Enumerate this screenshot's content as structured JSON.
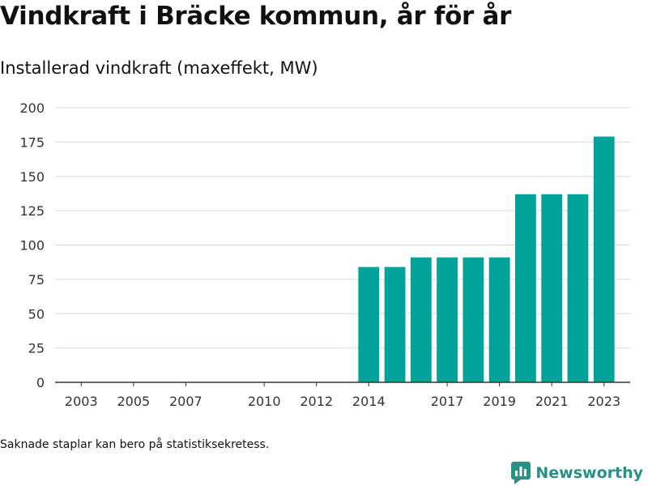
{
  "title": "Vindkraft i Bräcke kommun, år för år",
  "subtitle": "Installerad vindkraft (maxeffekt, MW)",
  "footnote": "Saknade staplar kan bero på statistiksekretess.",
  "brand": {
    "label": "Newsworthy",
    "icon": "newsworthy-logo-icon",
    "color": "#2a8f84"
  },
  "colors": {
    "bar": "#00a398",
    "grid": "#d9d9d9",
    "axis": "#333333"
  },
  "chart_data": {
    "type": "bar",
    "title": "Vindkraft i Bräcke kommun, år för år",
    "subtitle": "Installerad vindkraft (maxeffekt, MW)",
    "xlabel": "",
    "ylabel": "",
    "categories": [
      2014,
      2015,
      2016,
      2017,
      2018,
      2019,
      2020,
      2021,
      2022,
      2023
    ],
    "values": [
      84,
      84,
      91,
      91,
      91,
      91,
      137,
      137,
      137,
      179
    ],
    "x_range": [
      2002,
      2024
    ],
    "x_ticks": [
      "2003",
      "2005",
      "2007",
      "2010",
      "2012",
      "2014",
      "2017",
      "2019",
      "2021",
      "2023"
    ],
    "ylim": [
      0,
      200
    ],
    "y_ticks": [
      0,
      25,
      50,
      75,
      100,
      125,
      150,
      175,
      200
    ],
    "grid": true,
    "legend": "none"
  }
}
